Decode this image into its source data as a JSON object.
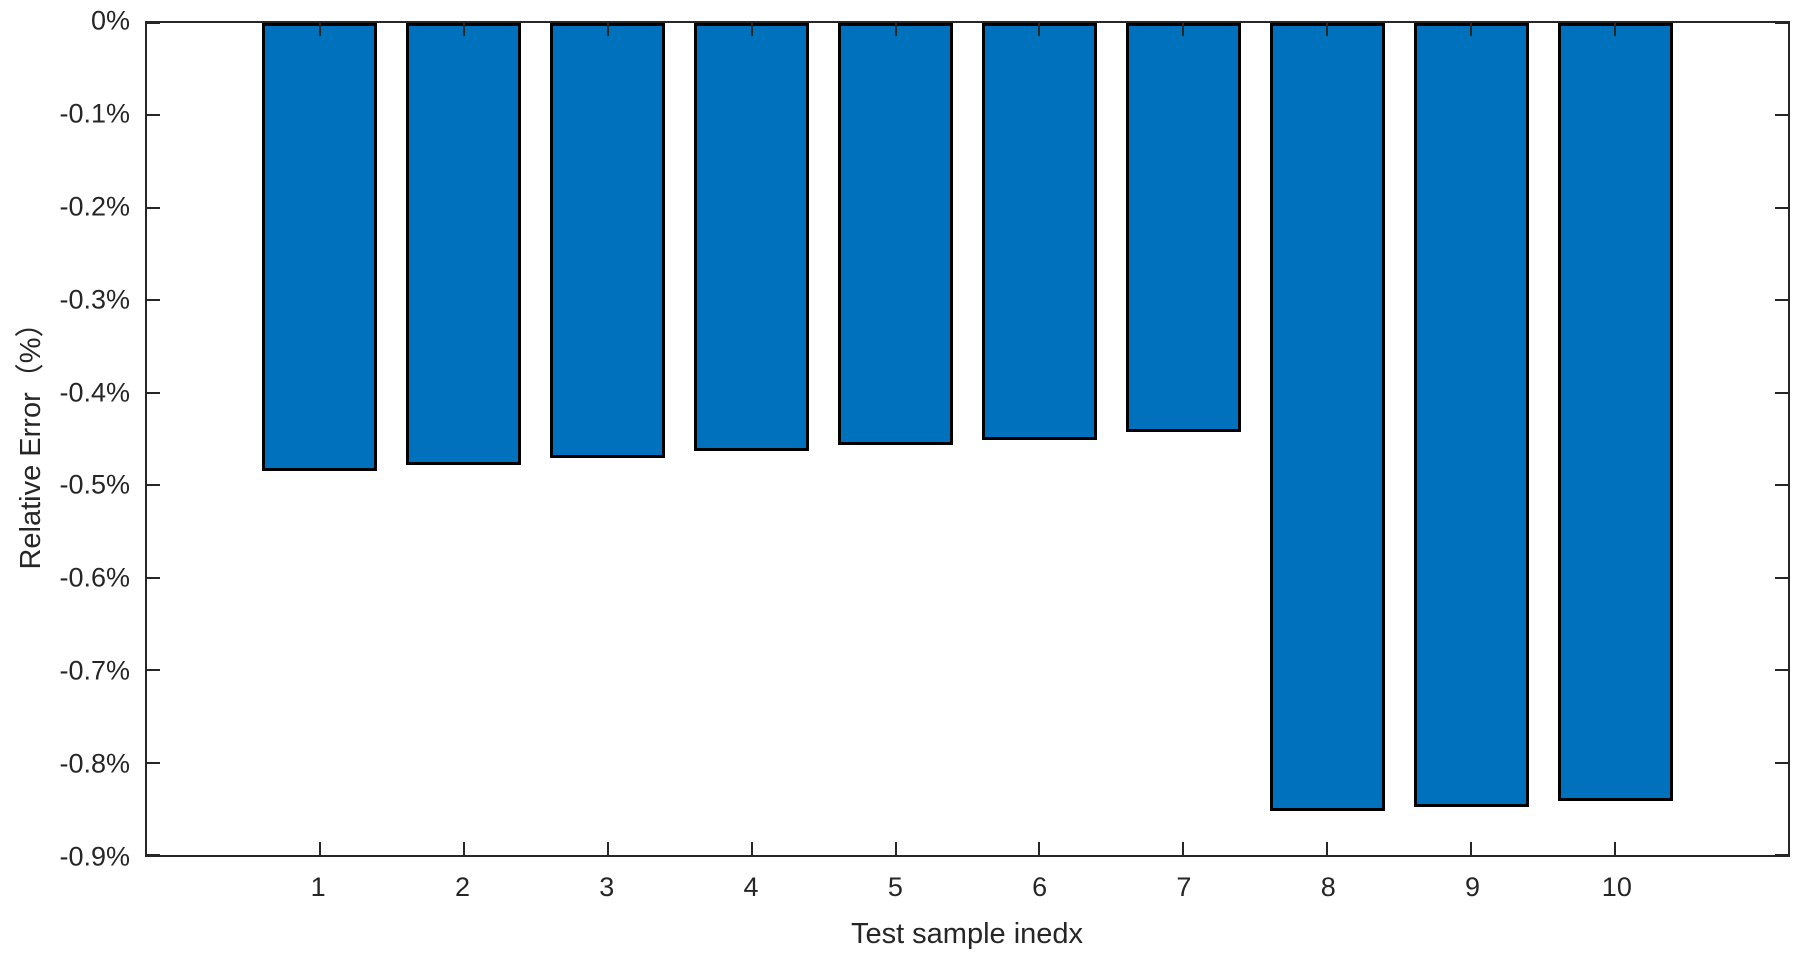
{
  "figure": {
    "background": "#ffffff"
  },
  "chart_data": {
    "type": "bar",
    "title": "",
    "xlabel": "Test sample inedx",
    "ylabel": "Relative Error（%）",
    "categories": [
      "1",
      "2",
      "3",
      "4",
      "5",
      "6",
      "7",
      "8",
      "9",
      "10"
    ],
    "values": [
      -0.485,
      -0.478,
      -0.471,
      -0.463,
      -0.457,
      -0.451,
      -0.442,
      -0.852,
      -0.848,
      -0.842
    ],
    "value_unit": "%",
    "series_name": "Relative Error",
    "xlim": [
      -0.2,
      11.2
    ],
    "ylim": [
      -0.9,
      0
    ],
    "yticks": [
      0,
      -0.1,
      -0.2,
      -0.3,
      -0.4,
      -0.5,
      -0.6,
      -0.7,
      -0.8,
      -0.9
    ],
    "ytick_labels": [
      "0%",
      "-0.1%",
      "-0.2%",
      "-0.3%",
      "-0.4%",
      "-0.5%",
      "-0.6%",
      "-0.7%",
      "-0.8%",
      "-0.9%"
    ],
    "bar_width_units": 0.8,
    "grid": "off",
    "legend_position": "none",
    "bar_color": "#0072BD",
    "bar_edge_color": "#000000",
    "axis_color": "#262626",
    "tick_label_color": "#262626"
  }
}
